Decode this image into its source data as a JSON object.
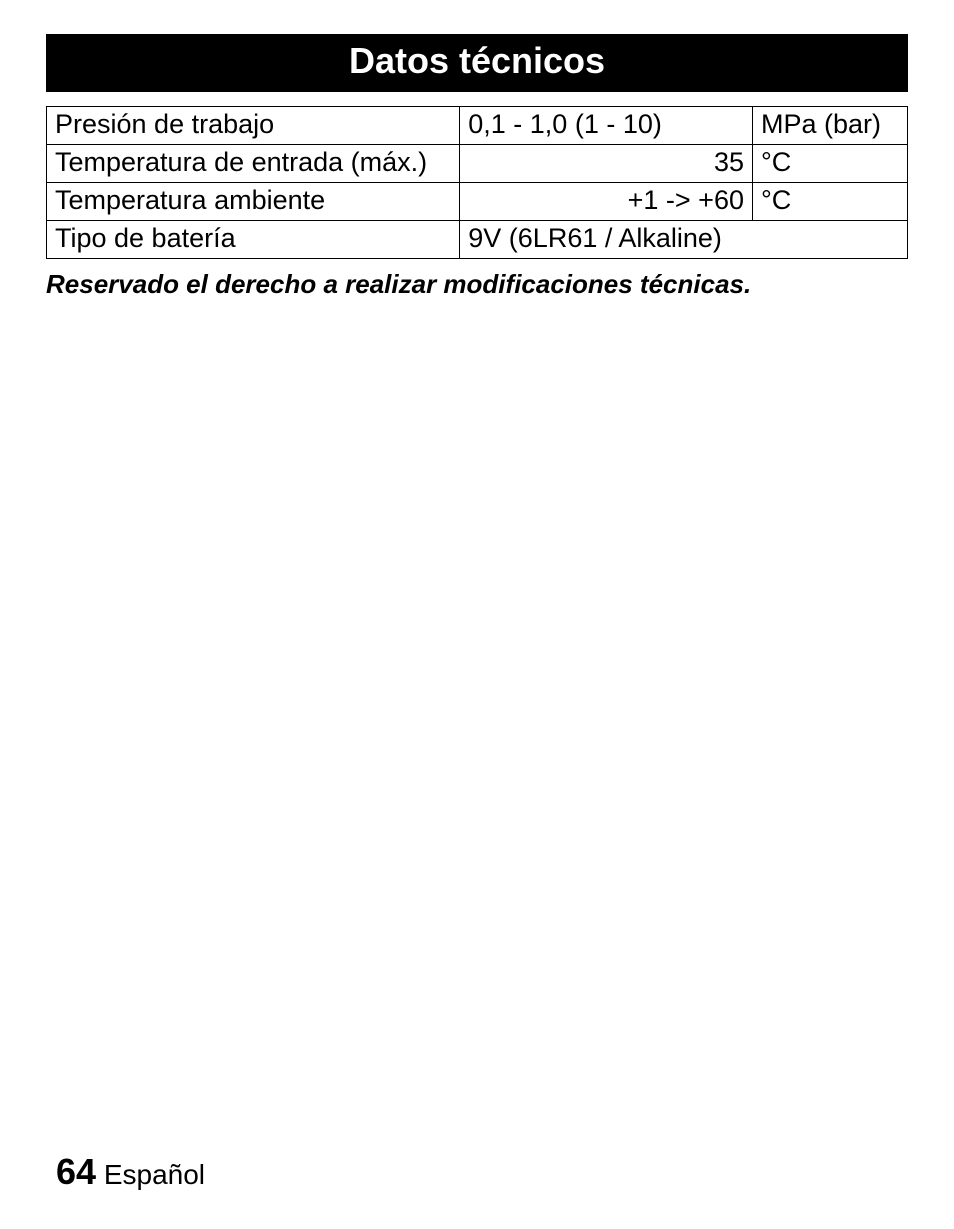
{
  "heading": "Datos técnicos",
  "table": {
    "columns": {
      "label_width": "48%",
      "value_width": "34%",
      "unit_width": "18%",
      "label_align": "left",
      "value_align": "right",
      "unit_align": "left"
    },
    "border_color": "#000000",
    "font_size_pt": 20,
    "rows": [
      {
        "label": "Presión de trabajo",
        "value": "0,1 - 1,0 (1 - 10)",
        "unit": "MPa (bar)",
        "value_align": "left"
      },
      {
        "label": "Temperatura de entrada (máx.)",
        "value": "35",
        "unit": "°C",
        "value_align": "right"
      },
      {
        "label": "Temperatura ambiente",
        "value": "+1 -> +60",
        "unit": "°C",
        "value_align": "right"
      },
      {
        "label": "Tipo de batería",
        "value": "9V (6LR61 / Alkaline)",
        "unit": "",
        "span": true,
        "value_align": "left"
      }
    ]
  },
  "footnote": "Reservado el derecho a realizar modificaciones técnicas.",
  "footer": {
    "page_number": "64",
    "language": "Español"
  },
  "colors": {
    "heading_bg": "#000000",
    "heading_fg": "#ffffff",
    "page_bg": "#ffffff",
    "text_color": "#000000"
  },
  "typography": {
    "heading_fontsize": 36,
    "heading_weight": "bold",
    "body_fontsize": 27,
    "footnote_fontsize": 26,
    "footnote_style": "italic bold",
    "footer_page_fontsize": 36,
    "footer_lang_fontsize": 28,
    "font_family": "Arial"
  }
}
